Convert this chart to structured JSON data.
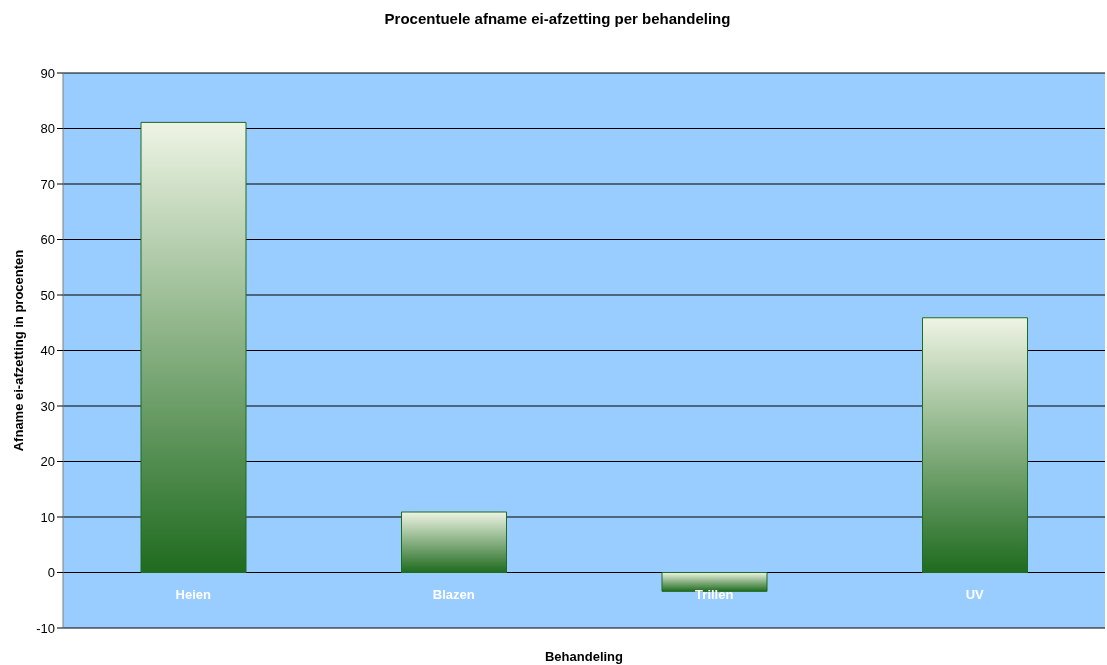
{
  "chart_data": {
    "type": "bar",
    "title": "Procentuele afname ei-afzetting per behandeling",
    "xlabel": "Behandeling",
    "ylabel": "Afname ei-afzetting in procenten",
    "categories": [
      "Heien",
      "Blazen",
      "Trillen",
      "UV"
    ],
    "values": [
      81.1,
      10.9,
      -3.4,
      45.9
    ],
    "color": "#1f6b1f",
    "ylim": [
      -10,
      90
    ],
    "yticks": [
      -10,
      0,
      10,
      20,
      30,
      40,
      50,
      60,
      70,
      80,
      90
    ],
    "grid": "y"
  }
}
